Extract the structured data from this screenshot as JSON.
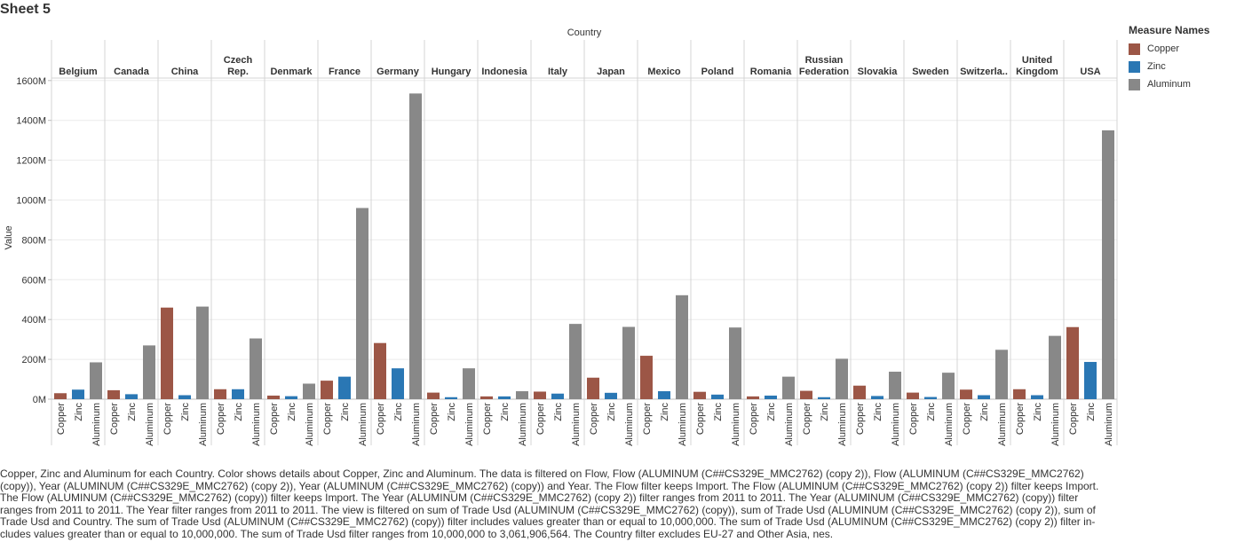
{
  "sheet": {
    "title": "Sheet 5"
  },
  "chart_data": {
    "type": "bar",
    "header_title": "Country",
    "ylabel": "Value",
    "ylim": [
      0,
      1700
    ],
    "y_unit_suffix": "M",
    "y_ticks": [
      {
        "value": 0,
        "label": "0M"
      },
      {
        "value": 200,
        "label": "200M"
      },
      {
        "value": 400,
        "label": "400M"
      },
      {
        "value": 600,
        "label": "600M"
      },
      {
        "value": 800,
        "label": "800M"
      },
      {
        "value": 1000,
        "label": "1000M"
      },
      {
        "value": 1200,
        "label": "1200M"
      },
      {
        "value": 1400,
        "label": "1400M"
      },
      {
        "value": 1600,
        "label": "1600M"
      }
    ],
    "measures": [
      "Copper",
      "Zinc",
      "Aluminum"
    ],
    "colors": {
      "Copper": "#9c5646",
      "Zinc": "#2a77b4",
      "Aluminum": "#888888"
    },
    "countries": [
      {
        "name": "Belgium",
        "label_lines": [
          "Belgium"
        ],
        "values": [
          30,
          48,
          185
        ]
      },
      {
        "name": "Canada",
        "label_lines": [
          "Canada"
        ],
        "values": [
          45,
          25,
          270
        ]
      },
      {
        "name": "China",
        "label_lines": [
          "China"
        ],
        "values": [
          460,
          20,
          465
        ]
      },
      {
        "name": "Czech Rep.",
        "label_lines": [
          "Czech",
          "Rep."
        ],
        "values": [
          50,
          50,
          305
        ]
      },
      {
        "name": "Denmark",
        "label_lines": [
          "Denmark"
        ],
        "values": [
          18,
          15,
          78
        ]
      },
      {
        "name": "France",
        "label_lines": [
          "France"
        ],
        "values": [
          93,
          113,
          960
        ]
      },
      {
        "name": "Germany",
        "label_lines": [
          "Germany"
        ],
        "values": [
          282,
          155,
          1535
        ]
      },
      {
        "name": "Hungary",
        "label_lines": [
          "Hungary"
        ],
        "values": [
          33,
          10,
          155
        ]
      },
      {
        "name": "Indonesia",
        "label_lines": [
          "Indonesia"
        ],
        "values": [
          14,
          14,
          40
        ]
      },
      {
        "name": "Italy",
        "label_lines": [
          "Italy"
        ],
        "values": [
          38,
          28,
          378
        ]
      },
      {
        "name": "Japan",
        "label_lines": [
          "Japan"
        ],
        "values": [
          108,
          32,
          363
        ]
      },
      {
        "name": "Mexico",
        "label_lines": [
          "Mexico"
        ],
        "values": [
          218,
          40,
          522
        ]
      },
      {
        "name": "Poland",
        "label_lines": [
          "Poland"
        ],
        "values": [
          37,
          23,
          360
        ]
      },
      {
        "name": "Romania",
        "label_lines": [
          "Romania"
        ],
        "values": [
          14,
          18,
          113
        ]
      },
      {
        "name": "Russian Federation",
        "label_lines": [
          "Russian",
          "Federation"
        ],
        "values": [
          42,
          10,
          203
        ]
      },
      {
        "name": "Slovakia",
        "label_lines": [
          "Slovakia"
        ],
        "values": [
          68,
          16,
          138
        ]
      },
      {
        "name": "Sweden",
        "label_lines": [
          "Sweden"
        ],
        "values": [
          33,
          11,
          133
        ]
      },
      {
        "name": "Switzerla..",
        "label_lines": [
          "Switzerla.."
        ],
        "values": [
          48,
          20,
          248
        ]
      },
      {
        "name": "United Kingdom",
        "label_lines": [
          "United",
          "Kingdom"
        ],
        "values": [
          50,
          20,
          318
        ]
      },
      {
        "name": "USA",
        "label_lines": [
          "USA"
        ],
        "values": [
          362,
          187,
          1350
        ]
      }
    ]
  },
  "legend": {
    "title": "Measure Names",
    "items": [
      {
        "label": "Copper",
        "color": "#9c5646"
      },
      {
        "label": "Zinc",
        "color": "#2a77b4"
      },
      {
        "label": "Aluminum",
        "color": "#888888"
      }
    ]
  },
  "caption": "Copper, Zinc and Aluminum for each Country.  Color shows details about Copper, Zinc and Aluminum. The data is filtered on Flow, Flow (ALUMINUM (C##CS329E_MMC2762) (copy 2)), Flow (ALUMINUM (C##CS329E_MMC2762) (copy)), Year (ALUMINUM (C##CS329E_MMC2762) (copy 2)), Year (ALUMINUM (C##CS329E_MMC2762) (copy)) and Year. The Flow filter keeps Import. The Flow (ALUMINUM (C##CS329E_MMC2762) (copy 2)) filter keeps Import. The Flow (ALUMINUM (C##CS329E_MMC2762) (copy)) filter keeps Import. The Year (ALUMINUM (C##CS329E_MMC2762) (copy 2)) filter ranges from 2011 to 2011. The Year (ALUMINUM (C##CS329E_MMC2762) (copy)) filter ranges from 2011 to 2011. The Year filter ranges from 2011 to 2011. The view is filtered on sum of Trade Usd (ALUMINUM (C##CS329E_MMC2762) (copy)), sum of Trade Usd (ALUMINUM (C##CS329E_MMC2762) (copy 2)), sum of Trade Usd and Country. The sum of Trade Usd (ALUMINUM (C##CS329E_MMC2762) (copy)) filter includes values greater than or equal to 10,000,000. The sum of Trade Usd (ALUMINUM (C##CS329E_MMC2762) (copy 2)) filter in-cludes values greater than or equal to 10,000,000. The sum of Trade Usd filter ranges from 10,000,000 to 3,061,906,564. The Country filter excludes EU-27 and Other Asia, nes."
}
